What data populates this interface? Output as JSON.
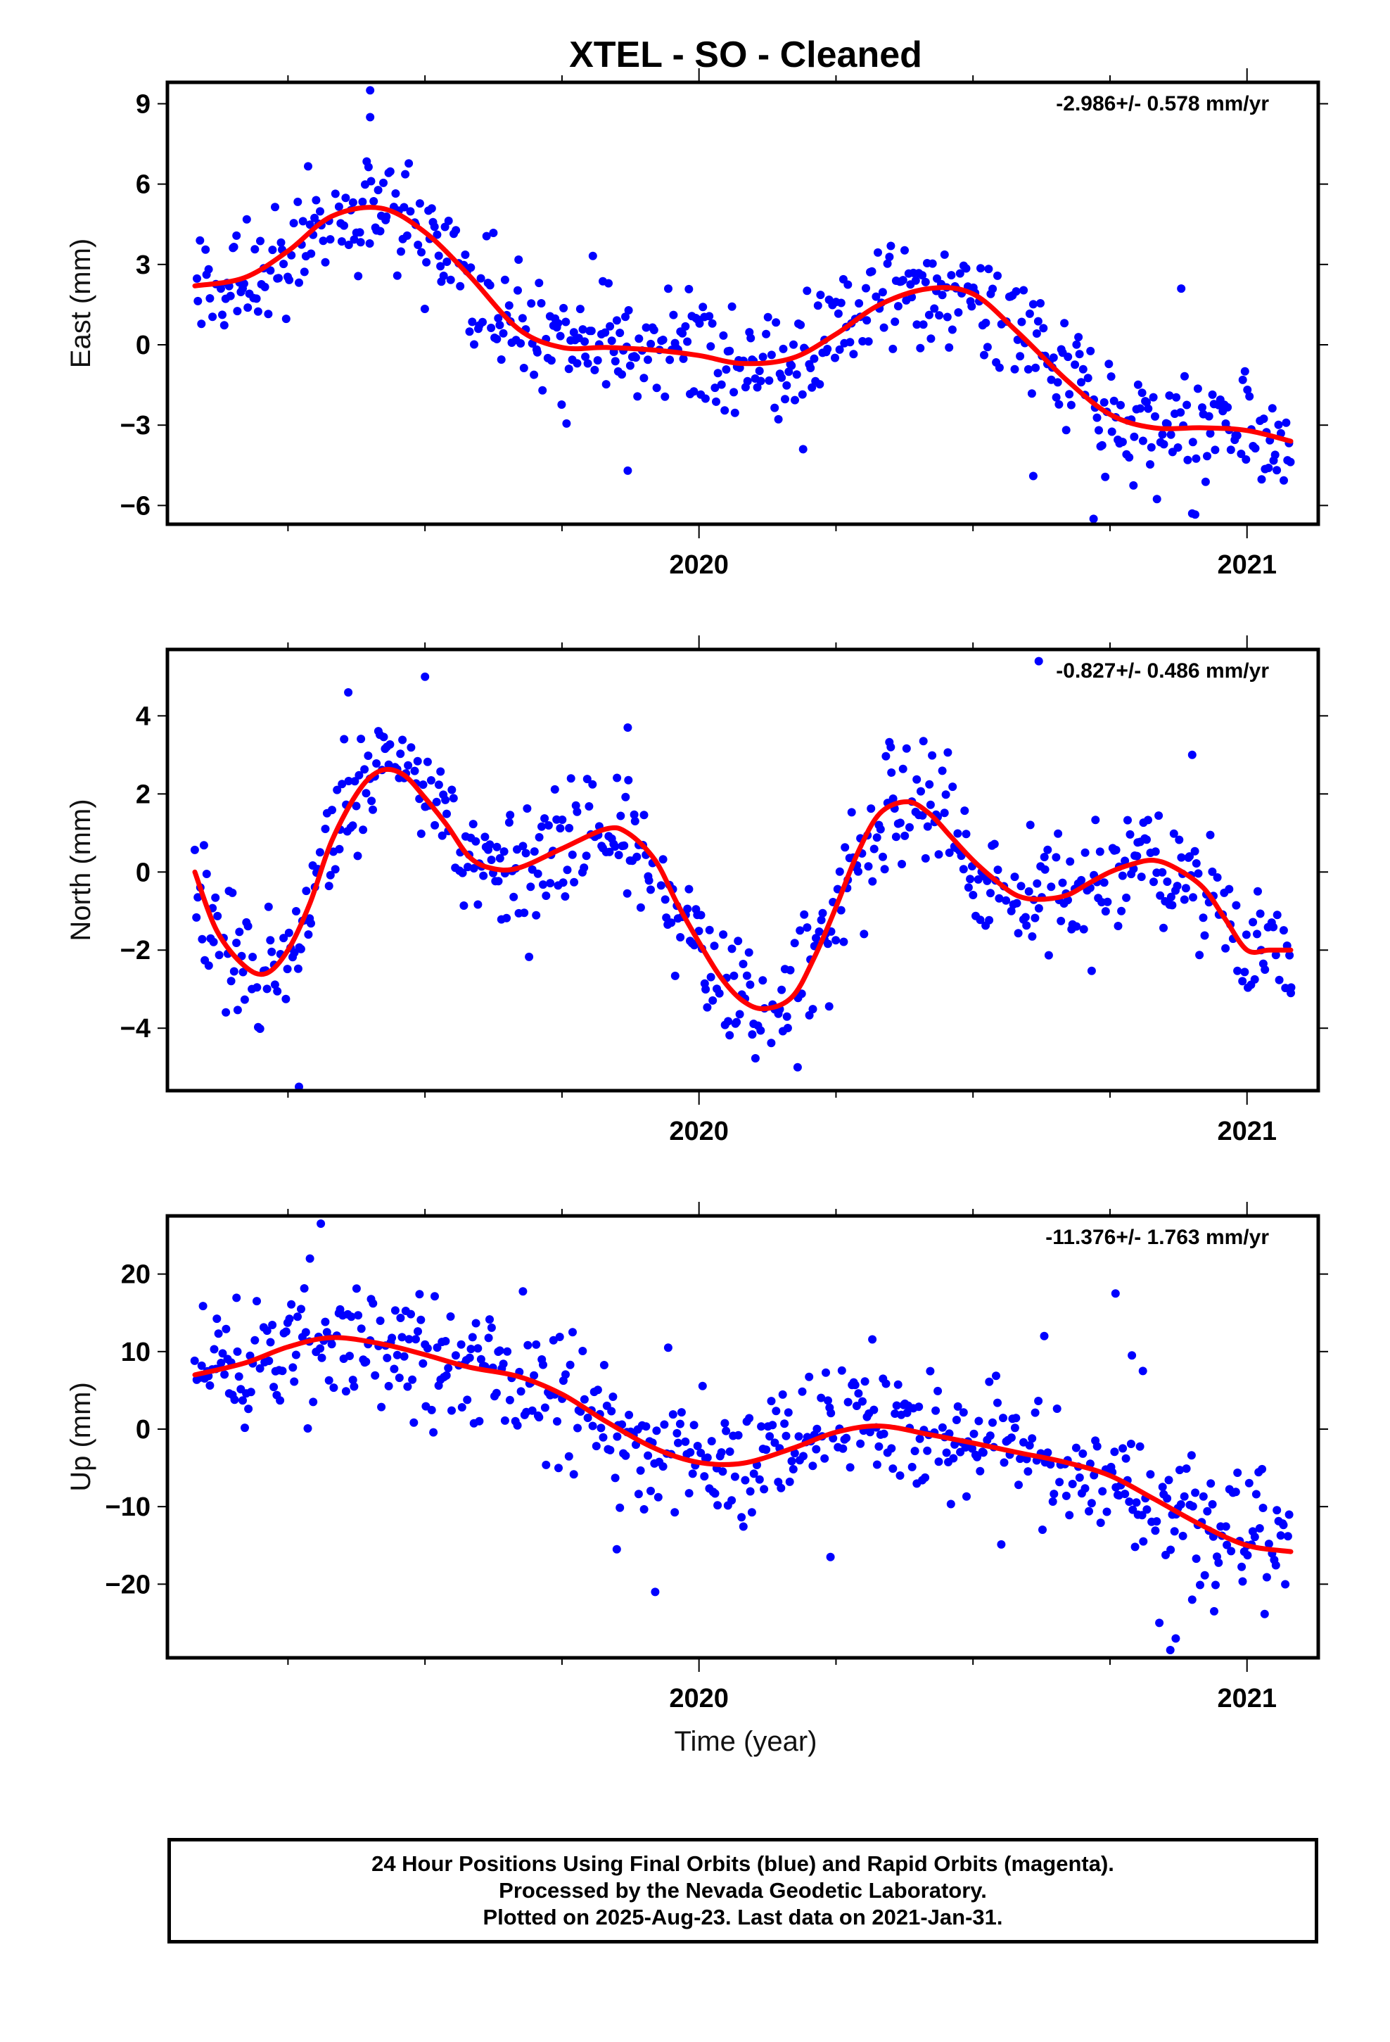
{
  "figure": {
    "title": "XTEL  - SO - Cleaned",
    "xlabel": "Time (year)",
    "caption": [
      "24 Hour Positions Using Final Orbits (blue) and Rapid Orbits (magenta).",
      "Processed by the Nevada Geodetic Laboratory.",
      "Plotted on 2025-Aug-23. Last data on 2021-Jan-31."
    ],
    "colors": {
      "data_points": "#0000ff",
      "fit_line": "#ff0000",
      "frame": "#000000"
    }
  },
  "chart_data": [
    {
      "type": "scatter",
      "component": "east",
      "ylabel": "East (mm)",
      "rate_text": "-2.986+/- 0.578 mm/yr",
      "xlim": [
        2019.03,
        2021.13
      ],
      "ylim": [
        -6.7,
        9.8
      ],
      "yticks": [
        -6,
        -3,
        0,
        3,
        6,
        9
      ],
      "ytick_labels": [
        "−6",
        "−3",
        "0",
        "3",
        "6",
        "9"
      ],
      "xticks_labeled": [
        2020,
        2021
      ],
      "xtick_labels": [
        "2020",
        "2021"
      ],
      "xticks_minor": [
        2019.25,
        2019.5,
        2019.75,
        2020.25,
        2020.5,
        2020.75
      ],
      "x_range": [
        2019.08,
        2021.08
      ],
      "noise_sd": 1.1,
      "fit": {
        "x": [
          2019.08,
          2019.17,
          2019.25,
          2019.33,
          2019.42,
          2019.5,
          2019.58,
          2019.67,
          2019.75,
          2019.83,
          2019.92,
          2020.0,
          2020.08,
          2020.17,
          2020.25,
          2020.33,
          2020.42,
          2020.5,
          2020.58,
          2020.67,
          2020.75,
          2020.83,
          2020.92,
          2021.0,
          2021.08
        ],
        "y": [
          2.2,
          2.5,
          3.5,
          4.8,
          5.1,
          4.2,
          2.6,
          0.6,
          -0.1,
          -0.1,
          -0.2,
          -0.4,
          -0.7,
          -0.5,
          0.4,
          1.5,
          2.1,
          1.9,
          0.5,
          -1.3,
          -2.6,
          -3.1,
          -3.1,
          -3.2,
          -3.6
        ]
      },
      "outliers": [
        {
          "x": 2019.4,
          "y": 9.5
        },
        {
          "x": 2019.4,
          "y": 8.5
        },
        {
          "x": 2019.87,
          "y": -4.7
        },
        {
          "x": 2020.61,
          "y": -4.9
        },
        {
          "x": 2020.72,
          "y": -6.5
        },
        {
          "x": 2020.9,
          "y": -6.3
        },
        {
          "x": 2020.88,
          "y": 2.1
        },
        {
          "x": 2020.19,
          "y": -3.9
        }
      ]
    },
    {
      "type": "scatter",
      "component": "north",
      "ylabel": "North (mm)",
      "rate_text": "-0.827+/- 0.486 mm/yr",
      "xlim": [
        2019.03,
        2021.13
      ],
      "ylim": [
        -5.6,
        5.7
      ],
      "yticks": [
        -4,
        -2,
        0,
        2,
        4
      ],
      "ytick_labels": [
        "−4",
        "−2",
        "0",
        "2",
        "4"
      ],
      "xticks_labeled": [
        2020,
        2021
      ],
      "xtick_labels": [
        "2020",
        "2021"
      ],
      "xticks_minor": [
        2019.25,
        2019.5,
        2019.75,
        2020.25,
        2020.5,
        2020.75
      ],
      "x_range": [
        2019.08,
        2021.08
      ],
      "noise_sd": 0.8,
      "fit": {
        "x": [
          2019.08,
          2019.12,
          2019.17,
          2019.21,
          2019.25,
          2019.29,
          2019.33,
          2019.38,
          2019.42,
          2019.46,
          2019.5,
          2019.54,
          2019.58,
          2019.62,
          2019.67,
          2019.75,
          2019.83,
          2019.87,
          2019.92,
          2019.96,
          2020.0,
          2020.04,
          2020.08,
          2020.12,
          2020.17,
          2020.21,
          2020.25,
          2020.29,
          2020.33,
          2020.38,
          2020.42,
          2020.46,
          2020.5,
          2020.54,
          2020.58,
          2020.62,
          2020.67,
          2020.71,
          2020.75,
          2020.79,
          2020.83,
          2020.87,
          2020.92,
          2020.96,
          2021.0,
          2021.04,
          2021.08
        ],
        "y": [
          0.0,
          -1.5,
          -2.4,
          -2.6,
          -2.0,
          -0.8,
          0.8,
          2.1,
          2.6,
          2.5,
          1.9,
          1.2,
          0.4,
          0.1,
          0.1,
          0.6,
          1.1,
          1.0,
          0.3,
          -0.8,
          -1.8,
          -2.7,
          -3.3,
          -3.5,
          -3.2,
          -2.2,
          -0.9,
          0.5,
          1.5,
          1.8,
          1.5,
          0.9,
          0.3,
          -0.2,
          -0.6,
          -0.7,
          -0.6,
          -0.3,
          0.0,
          0.2,
          0.3,
          0.1,
          -0.4,
          -1.2,
          -2.0,
          -2.0,
          -2.0
        ]
      },
      "outliers": [
        {
          "x": 2019.36,
          "y": 4.6
        },
        {
          "x": 2019.5,
          "y": 5.0
        },
        {
          "x": 2019.87,
          "y": 3.7
        },
        {
          "x": 2020.35,
          "y": 3.2
        },
        {
          "x": 2020.9,
          "y": 3.0
        },
        {
          "x": 2019.27,
          "y": -5.5
        },
        {
          "x": 2020.18,
          "y": -5.0
        },
        {
          "x": 2021.08,
          "y": -3.1
        },
        {
          "x": 2020.62,
          "y": 5.4
        }
      ]
    },
    {
      "type": "scatter",
      "component": "up",
      "ylabel": "Up (mm)",
      "rate_text": "-11.376+/- 1.763 mm/yr",
      "xlim": [
        2019.03,
        2021.13
      ],
      "ylim": [
        -29.5,
        27.5
      ],
      "yticks": [
        -20,
        -10,
        0,
        10,
        20
      ],
      "ytick_labels": [
        "−20",
        "−10",
        "0",
        "10",
        "20"
      ],
      "xticks_labeled": [
        2020,
        2021
      ],
      "xtick_labels": [
        "2020",
        "2021"
      ],
      "xticks_minor": [
        2019.25,
        2019.5,
        2019.75,
        2020.25,
        2020.5,
        2020.75
      ],
      "x_range": [
        2019.08,
        2021.08
      ],
      "noise_sd": 4.2,
      "fit": {
        "x": [
          2019.08,
          2019.17,
          2019.25,
          2019.33,
          2019.42,
          2019.5,
          2019.58,
          2019.67,
          2019.75,
          2019.83,
          2019.92,
          2020.0,
          2020.08,
          2020.17,
          2020.25,
          2020.33,
          2020.42,
          2020.5,
          2020.58,
          2020.67,
          2020.75,
          2020.83,
          2020.92,
          2021.0,
          2021.08
        ],
        "y": [
          7.0,
          8.5,
          10.6,
          11.8,
          11.0,
          9.6,
          8.0,
          6.8,
          4.5,
          1.0,
          -2.5,
          -4.3,
          -4.4,
          -2.5,
          -0.4,
          0.4,
          -0.7,
          -1.8,
          -3.0,
          -4.3,
          -6.0,
          -9.0,
          -12.5,
          -15.0,
          -15.8
        ]
      },
      "outliers": [
        {
          "x": 2019.31,
          "y": 26.5
        },
        {
          "x": 2019.29,
          "y": 22.0
        },
        {
          "x": 2019.92,
          "y": -21.0
        },
        {
          "x": 2019.85,
          "y": -15.5
        },
        {
          "x": 2020.24,
          "y": -16.5
        },
        {
          "x": 2020.63,
          "y": 12.0
        },
        {
          "x": 2020.76,
          "y": 17.5
        },
        {
          "x": 2020.79,
          "y": 9.5
        },
        {
          "x": 2020.81,
          "y": 7.5
        },
        {
          "x": 2020.86,
          "y": -28.5
        },
        {
          "x": 2020.87,
          "y": -27.0
        },
        {
          "x": 2020.84,
          "y": -25.0
        },
        {
          "x": 2020.9,
          "y": -22.0
        },
        {
          "x": 2020.94,
          "y": -23.5
        },
        {
          "x": 2021.0,
          "y": -15.0
        }
      ]
    }
  ]
}
